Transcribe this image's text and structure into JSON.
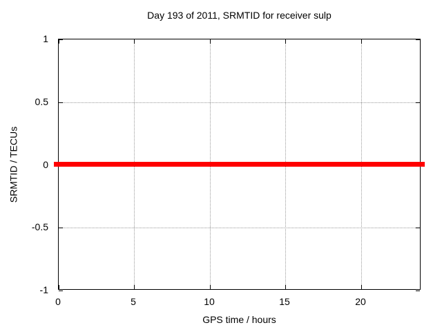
{
  "chart_data": {
    "type": "line",
    "title": "Day 193 of 2011, SRMTID for receiver sulp",
    "xlabel": "GPS time / hours",
    "ylabel": "SRMTID / TECUs",
    "xlim": [
      0,
      24
    ],
    "ylim": [
      -1,
      1
    ],
    "x_ticks": [
      0,
      5,
      10,
      15,
      20
    ],
    "y_ticks": [
      -1,
      -0.5,
      0,
      0.5,
      1
    ],
    "grid": true,
    "legend_position": "none",
    "series": [
      {
        "name": "SRMTID",
        "x": [
          0,
          24
        ],
        "y": [
          0,
          0
        ],
        "color": "#ff0000"
      }
    ],
    "colors": {
      "background": "#ffffff",
      "border": "#000000",
      "grid": "#999999",
      "text": "#000000"
    }
  }
}
